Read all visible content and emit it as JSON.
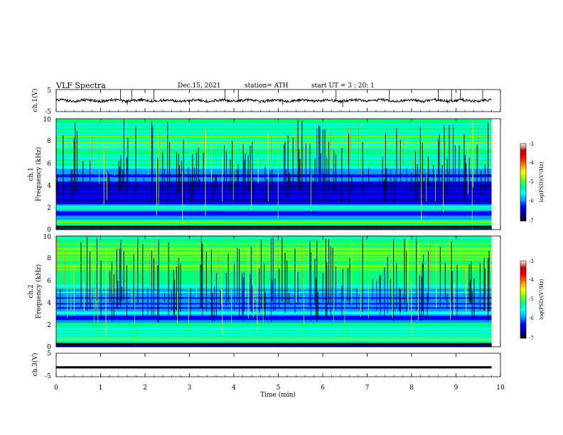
{
  "header": {
    "title": "VLF  Spectra",
    "date": "Dec.15, 2021",
    "station": "station= ATH",
    "start_ut": "start  UT  =    3  : 20: 1"
  },
  "chart_data": [
    {
      "id": "ch1-waveform",
      "type": "line",
      "ylabel": "ch.1(V)",
      "ylim": [
        -5,
        5
      ],
      "ytick_labels": [
        "5",
        "-5"
      ],
      "xlim": [
        0,
        10
      ],
      "series": [
        {
          "color": "#000000",
          "baseline": 0,
          "x_range": [
            0,
            9.8
          ],
          "spikes": [
            {
              "x": 1.45,
              "y": 5
            },
            {
              "x": 1.7,
              "y": 5
            },
            {
              "x": 2.2,
              "y": 5
            },
            {
              "x": 3.8,
              "y": 5
            },
            {
              "x": 4.1,
              "y": 5
            },
            {
              "x": 6.3,
              "y": 5
            },
            {
              "x": 6.45,
              "y": -3
            },
            {
              "x": 7.5,
              "y": 5
            },
            {
              "x": 8.6,
              "y": 5
            },
            {
              "x": 8.9,
              "y": 5
            },
            {
              "x": 9.1,
              "y": 5
            },
            {
              "x": 9.6,
              "y": 5
            },
            {
              "x": 1.6,
              "y": -2
            },
            {
              "x": 3.0,
              "y": -2
            },
            {
              "x": 5.1,
              "y": -2
            }
          ]
        }
      ]
    },
    {
      "id": "ch1-spectrogram",
      "type": "heatmap",
      "ylabel_lines": [
        "ch.1",
        "Frequency  (kHz)"
      ],
      "ylim": [
        0,
        10
      ],
      "xlim": [
        0,
        10
      ],
      "data_x_range": [
        0,
        9.8
      ],
      "ytick_labels": [
        "0",
        "2",
        "4",
        "6",
        "8",
        "10"
      ],
      "colorbar": {
        "label": "log(PSD)(V²/Hz)",
        "range": [
          -7,
          -3
        ],
        "tick_labels": [
          "-3",
          "-4",
          "-5",
          "-6",
          "-7"
        ],
        "colors": [
          "#000000",
          "#0000a0",
          "#0000ff",
          "#00a0ff",
          "#00ffff",
          "#00ff80",
          "#80ff00",
          "#ffff00",
          "#ff8000",
          "#ff0000",
          "#c00000",
          "#ffffff"
        ]
      },
      "frequency_profile_khz": [
        {
          "f": 0.0,
          "v": -6.8
        },
        {
          "f": 0.5,
          "v": -4.6
        },
        {
          "f": 1.0,
          "v": -5.4
        },
        {
          "f": 1.5,
          "v": -6.2
        },
        {
          "f": 2.0,
          "v": -5.0
        },
        {
          "f": 2.5,
          "v": -6.0
        },
        {
          "f": 3.0,
          "v": -6.3
        },
        {
          "f": 4.0,
          "v": -6.4
        },
        {
          "f": 5.0,
          "v": -5.8
        },
        {
          "f": 6.0,
          "v": -5.2
        },
        {
          "f": 7.0,
          "v": -5.0
        },
        {
          "f": 8.0,
          "v": -5.0
        },
        {
          "f": 9.0,
          "v": -5.1
        },
        {
          "f": 10.0,
          "v": -5.2
        }
      ]
    },
    {
      "id": "ch2-spectrogram",
      "type": "heatmap",
      "ylabel_lines": [
        "ch.2",
        "Frequency  (kHz)"
      ],
      "ylim": [
        0,
        10
      ],
      "xlim": [
        0,
        10
      ],
      "data_x_range": [
        0,
        9.8
      ],
      "ytick_labels": [
        "0",
        "2",
        "4",
        "6",
        "8",
        "10"
      ],
      "colorbar": {
        "label": "log(PSD)(V²/Hz)",
        "range": [
          -7,
          -3
        ],
        "tick_labels": [
          "-3",
          "-4",
          "-5",
          "-6",
          "-7"
        ],
        "colors": [
          "#000000",
          "#0000a0",
          "#0000ff",
          "#00a0ff",
          "#00ffff",
          "#00ff80",
          "#80ff00",
          "#ffff00",
          "#ff8000",
          "#ff0000",
          "#c00000",
          "#ffffff"
        ]
      },
      "frequency_profile_khz": [
        {
          "f": 0.0,
          "v": -6.8
        },
        {
          "f": 0.5,
          "v": -5.0
        },
        {
          "f": 1.0,
          "v": -5.2
        },
        {
          "f": 1.5,
          "v": -5.4
        },
        {
          "f": 2.0,
          "v": -4.9
        },
        {
          "f": 2.5,
          "v": -6.2
        },
        {
          "f": 3.0,
          "v": -5.4
        },
        {
          "f": 3.5,
          "v": -5.8
        },
        {
          "f": 4.0,
          "v": -6.0
        },
        {
          "f": 5.0,
          "v": -5.6
        },
        {
          "f": 6.0,
          "v": -4.9
        },
        {
          "f": 7.0,
          "v": -4.8
        },
        {
          "f": 8.0,
          "v": -4.8
        },
        {
          "f": 9.0,
          "v": -4.9
        },
        {
          "f": 10.0,
          "v": -5.0
        }
      ]
    },
    {
      "id": "ch3-waveform",
      "type": "line",
      "ylabel": "ch.3(V)",
      "ylim": [
        -5,
        5
      ],
      "ytick_labels": [
        "5",
        "-5"
      ],
      "xlim": [
        0,
        10
      ],
      "series": [
        {
          "color": "#000000",
          "baseline": -1,
          "x_range": [
            0,
            9.8
          ],
          "spikes": []
        }
      ]
    }
  ],
  "x_axis": {
    "label": "Time  (min)",
    "range": [
      0,
      10
    ],
    "tick_labels": [
      "0",
      "1",
      "2",
      "3",
      "4",
      "5",
      "6",
      "7",
      "8",
      "9",
      "10"
    ]
  }
}
